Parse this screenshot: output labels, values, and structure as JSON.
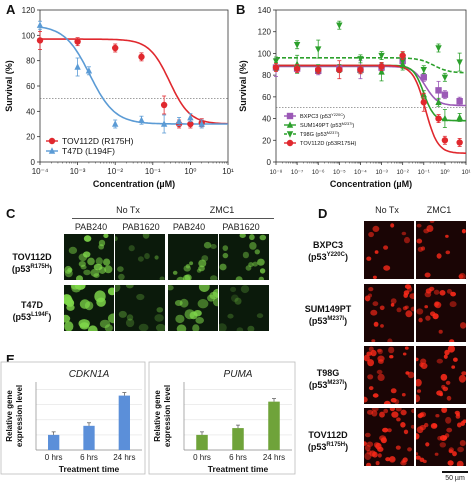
{
  "panels": {
    "A": "A",
    "B": "B",
    "C": "C",
    "D": "D",
    "E": "E"
  },
  "chart_data": [
    {
      "id": "A",
      "type": "line",
      "ylabel": "Survival (%)",
      "xlabel": "Concentration (µM)",
      "xscale": "log",
      "xlim": [
        0.0001,
        10
      ],
      "ylim": [
        0,
        120
      ],
      "yticks": [
        "0",
        "20",
        "40",
        "60",
        "80",
        "100",
        "120"
      ],
      "xticks": [
        "10⁻⁴",
        "10⁻³",
        "10⁻²",
        "10⁻¹",
        "10⁰",
        "10¹"
      ],
      "reference_line": 50,
      "legend_position": "bottom-left",
      "series": [
        {
          "name": "TOV112D (R175H)",
          "color": "#e0282e",
          "marker": "circle",
          "x": [
            0.0001,
            0.001,
            0.01,
            0.05,
            0.2,
            0.5,
            1,
            2
          ],
          "y": [
            96,
            95,
            90,
            83,
            45,
            30,
            30,
            31
          ]
        },
        {
          "name": "T47D (L194F)",
          "color": "#5b9bd5",
          "marker": "triangle",
          "x": [
            0.0001,
            0.001,
            0.002,
            0.01,
            0.05,
            0.2,
            0.5,
            1,
            2
          ],
          "y": [
            108,
            75,
            72,
            30,
            33,
            30,
            32,
            35,
            30
          ]
        }
      ]
    },
    {
      "id": "B",
      "type": "line",
      "ylabel": "Survival (%)",
      "xlabel": "Concentration (µM)",
      "xscale": "log",
      "xlim": [
        1e-08,
        10
      ],
      "ylim": [
        0,
        140
      ],
      "yticks": [
        "0",
        "20",
        "40",
        "60",
        "80",
        "100",
        "120",
        "140"
      ],
      "xticks": [
        "10⁻⁸",
        "10⁻⁷",
        "10⁻⁶",
        "10⁻⁵",
        "10⁻⁴",
        "10⁻³",
        "10⁻²",
        "10⁻¹",
        "10⁰",
        "10¹"
      ],
      "reference_line": 50,
      "legend_position": "bottom-left",
      "series": [
        {
          "name": "BXPC3 (p53",
          "sup": "Y220C",
          "close": ")",
          "color": "#9b59b6",
          "marker": "square",
          "x": [
            1e-08,
            1e-07,
            1e-06,
            1e-05,
            0.0001,
            0.001,
            0.01,
            0.1,
            0.5,
            1,
            5
          ],
          "y": [
            87,
            86,
            84,
            86,
            85,
            87,
            93,
            78,
            66,
            62,
            56
          ]
        },
        {
          "name": "SUM149PT (p53",
          "sup": "M237I",
          "close": ")",
          "color": "#2ca02c",
          "marker": "triangle",
          "x": [
            1e-08,
            1e-07,
            1e-06,
            1e-05,
            0.0001,
            0.001,
            0.01,
            0.1,
            0.5,
            1,
            5
          ],
          "y": [
            88,
            90,
            86,
            86,
            85,
            83,
            90,
            62,
            55,
            40,
            41
          ]
        },
        {
          "name": "T98G (p53",
          "sup": "M237I",
          "close": ")",
          "color": "#2ca02c",
          "marker": "triangle-down",
          "dashed": true,
          "x": [
            1e-08,
            1e-07,
            1e-06,
            1e-05,
            0.0001,
            0.001,
            0.01,
            0.1,
            0.5,
            1,
            5
          ],
          "y": [
            93,
            108,
            104,
            126,
            95,
            98,
            93,
            85,
            105,
            78,
            92
          ]
        },
        {
          "name": "TOV112D (p53R175H)",
          "color": "#e0282e",
          "marker": "circle",
          "x": [
            1e-08,
            1e-07,
            1e-06,
            1e-05,
            0.0001,
            0.001,
            0.01,
            0.1,
            0.5,
            1,
            5
          ],
          "y": [
            87,
            86,
            85,
            85,
            85,
            88,
            98,
            55,
            40,
            20,
            18
          ]
        }
      ]
    },
    {
      "id": "E-CDKN1A",
      "type": "bar",
      "title": "CDKN1A",
      "ylabel": "Relative gene expression level",
      "xlabel": "Treatment time",
      "categories": [
        "0 hrs",
        "6 hrs",
        "24 hrs"
      ],
      "values": [
        1.0,
        1.6,
        3.6
      ],
      "ylim": [
        0,
        4.5
      ],
      "color": "#5b8fd9"
    },
    {
      "id": "E-PUMA",
      "type": "bar",
      "title": "PUMA",
      "ylabel": "Relative gene expression level",
      "xlabel": "Treatment time",
      "categories": [
        "0 hrs",
        "6 hrs",
        "24 hrs"
      ],
      "values": [
        1.0,
        1.45,
        3.2
      ],
      "ylim": [
        0,
        4.5
      ],
      "color": "#6fa33a"
    }
  ],
  "panel_c": {
    "group_headers": [
      "No Tx",
      "ZMC1"
    ],
    "antibodies": [
      "PAB240",
      "PAB1620",
      "PAB240",
      "PAB1620"
    ],
    "rows": [
      {
        "name": "TOV112D",
        "mut_prefix": "(p53",
        "mut_sup": "R175H",
        "mut_close": ")"
      },
      {
        "name": "T47D",
        "mut_prefix": "(p53",
        "mut_sup": "L194F",
        "mut_close": ")"
      }
    ]
  },
  "panel_d": {
    "headers": [
      "No Tx",
      "ZMC1"
    ],
    "rows": [
      {
        "name": "BXPC3",
        "mut_prefix": "(p53",
        "mut_sup": "Y220C",
        "mut_close": ")"
      },
      {
        "name": "SUM149PT",
        "mut_prefix": "(p53",
        "mut_sup": "M237I",
        "mut_close": ")"
      },
      {
        "name": "T98G",
        "mut_prefix": "(p53",
        "mut_sup": "M237I",
        "mut_close": ")"
      },
      {
        "name": "TOV112D",
        "mut_prefix": "(p53",
        "mut_sup": "R175H",
        "mut_close": ")"
      }
    ],
    "scale_bar": "50 µm"
  },
  "colors": {
    "green_stain": "#7fd84a",
    "red_stain": "#ff2a1a"
  }
}
